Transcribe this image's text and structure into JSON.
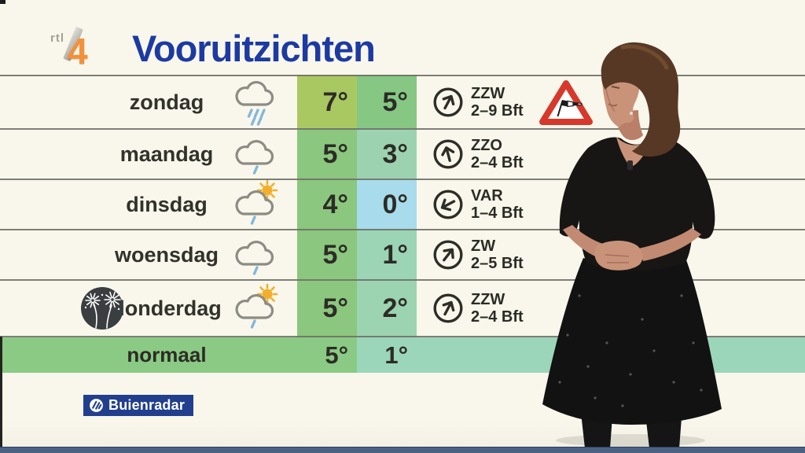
{
  "channel": {
    "rtl_text": "rtl",
    "four": "4"
  },
  "header": {
    "title": "Vooruitzichten"
  },
  "forecast": {
    "rows": [
      {
        "day": "zondag",
        "icon": "rain",
        "max": "7°",
        "min": "5°",
        "max_bg": "#aac862",
        "min_bg": "#86c784",
        "wind_dir": "ZZW",
        "wind_force": "2–9 Bft",
        "arrow_deg": 28,
        "warning": true,
        "special_icon": ""
      },
      {
        "day": "maandag",
        "icon": "drizzle",
        "max": "5°",
        "min": "3°",
        "max_bg": "#8bc77e",
        "min_bg": "#9dd2b0",
        "wind_dir": "ZZO",
        "wind_force": "2–4 Bft",
        "arrow_deg": -15,
        "warning": false,
        "special_icon": ""
      },
      {
        "day": "dinsdag",
        "icon": "sun-drizzle",
        "max": "4°",
        "min": "0°",
        "max_bg": "#8bc77e",
        "min_bg": "#a8dbeb",
        "wind_dir": "VAR",
        "wind_force": "1–4 Bft",
        "arrow_deg": -118,
        "warning": false,
        "special_icon": ""
      },
      {
        "day": "woensdag",
        "icon": "drizzle",
        "max": "5°",
        "min": "1°",
        "max_bg": "#8bc77e",
        "min_bg": "#9cd4b6",
        "wind_dir": "ZW",
        "wind_force": "2–5 Bft",
        "arrow_deg": 38,
        "warning": false,
        "special_icon": ""
      },
      {
        "day": "donderdag",
        "icon": "sun-drizzle",
        "max": "5°",
        "min": "2°",
        "max_bg": "#8bc77e",
        "min_bg": "#9cd3b1",
        "wind_dir": "ZZW",
        "wind_force": "2–4 Bft",
        "arrow_deg": 28,
        "warning": false,
        "special_icon": "fireworks"
      }
    ],
    "normal": {
      "label": "normaal",
      "max": "5°",
      "min": "1°",
      "max_bg": "#8bca84",
      "min_bg": "#9cd6ba"
    }
  },
  "branding": {
    "buienradar": "Buienradar"
  },
  "colors": {
    "background": "#f9f7eb",
    "title_blue": "#1c3aa2",
    "divider": "#70706a",
    "navy": "#223f8e",
    "bottom_bar": "#4c6285",
    "warning_red": "#d6392c",
    "text": "#2c2c26",
    "rain_drop": "#83b7da",
    "sun": "#f3ae2b"
  }
}
